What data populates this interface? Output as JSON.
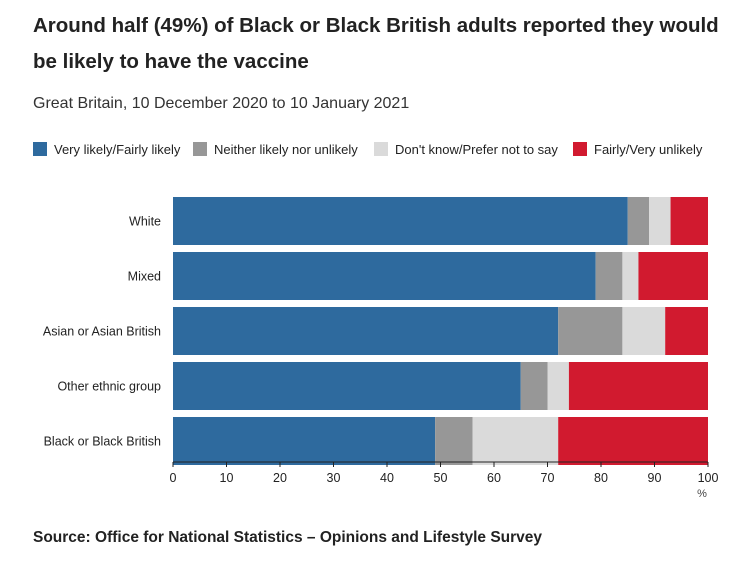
{
  "chart_data": {
    "type": "bar",
    "orientation": "horizontal",
    "stacked": true,
    "title": "Around half (49%) of Black or Black British adults reported they would be likely to have the vaccine",
    "subtitle": "Great Britain, 10 December 2020 to 10 January 2021",
    "categories": [
      "White",
      "Mixed",
      "Asian or Asian British",
      "Other ethnic group",
      "Black or Black British"
    ],
    "series": [
      {
        "name": "Very likely/Fairly likely",
        "color": "#2e6a9e",
        "values": [
          85,
          79,
          72,
          65,
          49
        ]
      },
      {
        "name": "Neither likely nor unlikely",
        "color": "#979797",
        "values": [
          4,
          5,
          12,
          5,
          7
        ]
      },
      {
        "name": "Don't know/Prefer not to say",
        "color": "#dadada",
        "values": [
          4,
          3,
          8,
          4,
          16
        ]
      },
      {
        "name": "Fairly/Very unlikely",
        "color": "#d11a2f",
        "values": [
          7,
          13,
          8,
          26,
          28
        ]
      }
    ],
    "xlim": [
      0,
      100
    ],
    "xticks": [
      "0",
      "10",
      "20",
      "30",
      "40",
      "50",
      "60",
      "70",
      "80",
      "90",
      "100"
    ],
    "xlabel": "%",
    "legend_position": "top",
    "source": "Source: Office for National Statistics – Opinions and Lifestyle Survey"
  }
}
